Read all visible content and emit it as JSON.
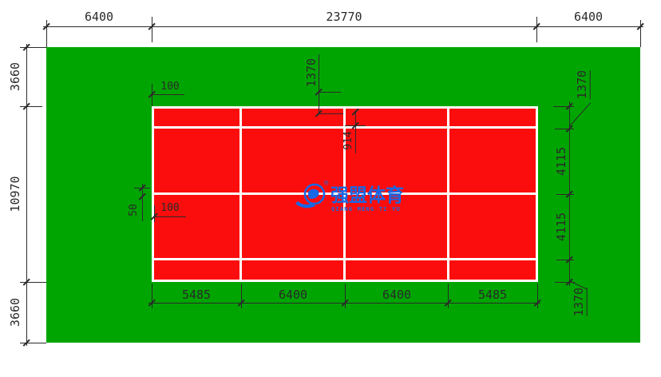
{
  "colors": {
    "surround_green": "#01a501",
    "court_red": "#fc0d0d",
    "line_white": "#ffffff",
    "dimension_ink": "#2a2a2a",
    "watermark_blue": "#1668e6"
  },
  "dims": {
    "top": [
      "6400",
      "23770",
      "6400"
    ],
    "left": [
      "3660",
      "10970",
      "3660"
    ],
    "right": [
      "1370",
      "4115",
      "4115",
      "1370"
    ],
    "bottom": [
      "5485",
      "6400",
      "6400",
      "5485"
    ]
  },
  "ann": {
    "top_left_line_width": "100",
    "top_center_offset": "1370",
    "center_offset": "914",
    "mid_left_line_width": "50",
    "mid_left_baseline_width": "100"
  },
  "watermark": {
    "reg": "®",
    "cn": "强盟体育",
    "en": "QIANG MENG TI YU"
  }
}
